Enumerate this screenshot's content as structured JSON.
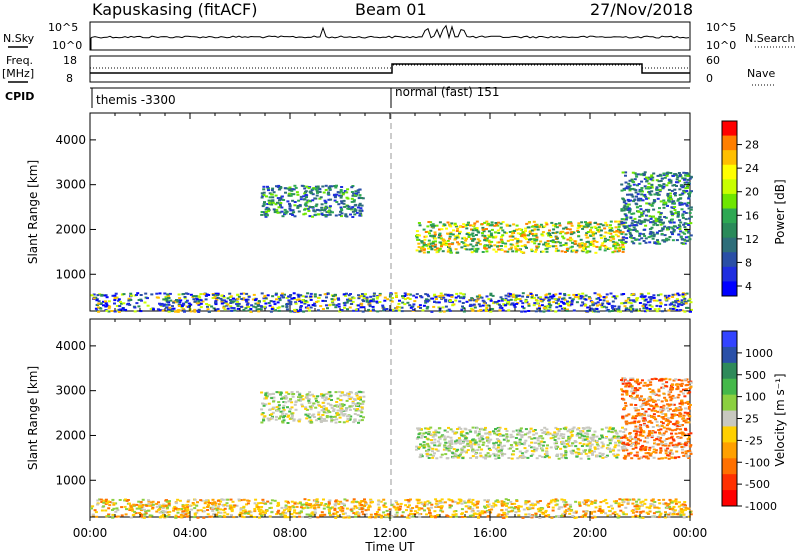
{
  "header": {
    "station": "Kapuskasing (fitACF)",
    "beam": "Beam 01",
    "date": "27/Nov/2018"
  },
  "top_panel": {
    "nsky_label": "N.Sky",
    "nsky_ticks": [
      "10^5",
      "10^0"
    ],
    "nsearch_label": "N.Search",
    "nsearch_ticks": [
      "10^5",
      "10^0"
    ],
    "freq_label": "Freq.",
    "freq_unit": "[MHz]",
    "freq_ticks": [
      "18",
      "8"
    ],
    "nave_label": "Nave",
    "nave_ticks": [
      "60",
      "0"
    ],
    "cpid_label": "CPID",
    "cpid_modes": [
      {
        "text": "themis -3300",
        "start_hour": 0
      },
      {
        "text": "normal (fast) 151",
        "start_hour": 12
      }
    ]
  },
  "axes": {
    "xlabel": "Time UT",
    "x_ticks": [
      "00:00",
      "04:00",
      "08:00",
      "12:00",
      "16:00",
      "20:00",
      "00:00"
    ],
    "ylabel": "Slant Range [km]",
    "y_ticks": [
      "4000",
      "3000",
      "2000",
      "1000"
    ]
  },
  "colorbars": {
    "power": {
      "label": "Power [dB]",
      "ticks": [
        "28",
        "24",
        "20",
        "16",
        "12",
        "8",
        "4"
      ],
      "colors": [
        "#ff0000",
        "#ff7f00",
        "#ffbf00",
        "#ffff00",
        "#c8ff00",
        "#6ee600",
        "#2ea853",
        "#2a8a5a",
        "#2e6e7a",
        "#2a4fa6",
        "#1f2ee0",
        "#0000ff"
      ]
    },
    "velocity": {
      "label": "Velocity [m s⁻¹]",
      "ticks": [
        "1000",
        "500",
        "100",
        "25",
        "-25",
        "-100",
        "-500",
        "-1000"
      ],
      "colors": [
        "#3344ff",
        "#2a50a8",
        "#2e8a5a",
        "#44b84a",
        "#8bd040",
        "#c8c8c0",
        "#ffd000",
        "#ffa000",
        "#ff7000",
        "#ff3000",
        "#ff0000"
      ]
    }
  },
  "chart_data": [
    {
      "type": "heatmap",
      "title": "Power",
      "xlabel": "Time UT",
      "ylabel": "Slant Range [km]",
      "xlim": [
        0,
        24
      ],
      "ylim": [
        180,
        4600
      ],
      "colorbar_range": [
        0,
        30
      ],
      "regions": [
        {
          "t_start": 6.8,
          "t_end": 10.9,
          "range_start": 2300,
          "range_end": 3000,
          "dominant": "green-blue"
        },
        {
          "t_start": 13.0,
          "t_end": 21.3,
          "range_start": 1500,
          "range_end": 2200,
          "dominant": "orange-green"
        },
        {
          "t_start": 21.2,
          "t_end": 24.0,
          "range_start": 1700,
          "range_end": 3300,
          "dominant": "green-blue"
        },
        {
          "t_start": 0.0,
          "t_end": 24.0,
          "range_start": 180,
          "range_end": 600,
          "dominant": "mixed"
        }
      ]
    },
    {
      "type": "heatmap",
      "title": "Velocity",
      "xlabel": "Time UT",
      "ylabel": "Slant Range [km]",
      "xlim": [
        0,
        24
      ],
      "ylim": [
        180,
        4600
      ],
      "colorbar_range": [
        -1000,
        1000
      ],
      "regions": [
        {
          "t_start": 6.8,
          "t_end": 10.9,
          "range_start": 2300,
          "range_end": 3000,
          "dominant": "gray"
        },
        {
          "t_start": 13.0,
          "t_end": 21.3,
          "range_start": 1500,
          "range_end": 2200,
          "dominant": "gray"
        },
        {
          "t_start": 21.2,
          "t_end": 24.0,
          "range_start": 1500,
          "range_end": 3300,
          "dominant": "orange"
        },
        {
          "t_start": 0.0,
          "t_end": 24.0,
          "range_start": 180,
          "range_end": 600,
          "dominant": "yellow-orange"
        }
      ]
    }
  ]
}
